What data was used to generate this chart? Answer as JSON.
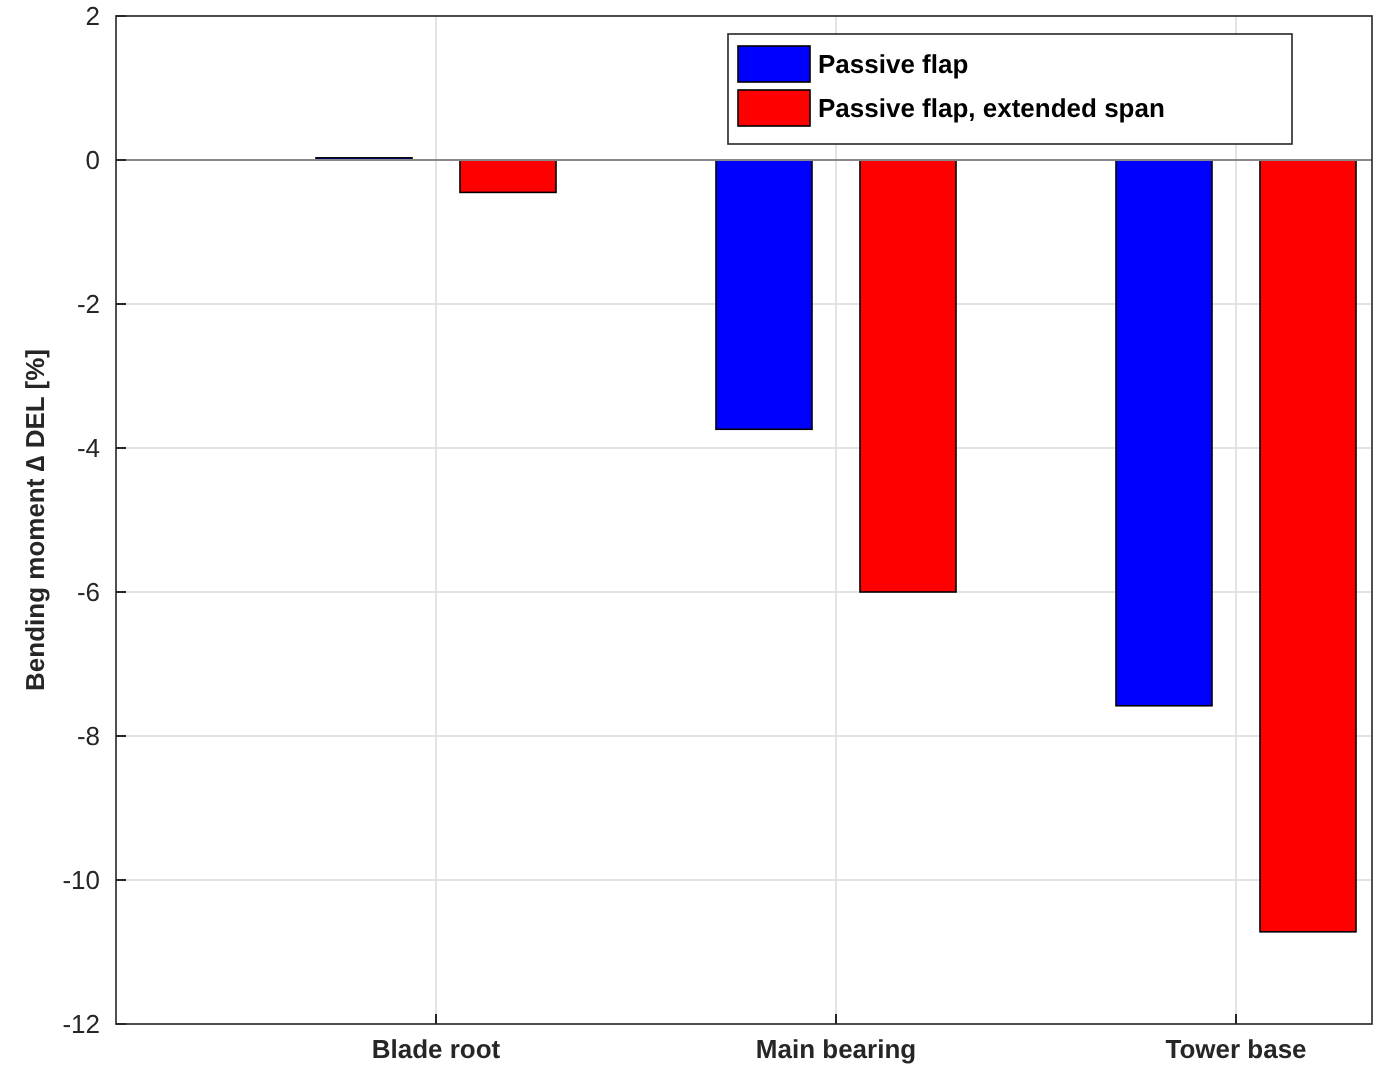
{
  "chart_data": {
    "type": "bar",
    "ylabel": "Bending moment ∆ DEL [%]",
    "categories": [
      "Blade root",
      "Main bearing",
      "Tower base"
    ],
    "series": [
      {
        "name": "Passive flap",
        "color": "#0000ff",
        "values": [
          0.03,
          -3.74,
          -7.58
        ]
      },
      {
        "name": "Passive flap, extended span",
        "color": "#ff0000",
        "values": [
          -0.45,
          -6.0,
          -10.72
        ]
      }
    ],
    "ylim": [
      -12,
      2
    ],
    "yticks": [
      -12,
      -10,
      -8,
      -6,
      -4,
      -2,
      0,
      2
    ],
    "grid": true,
    "legend": "top right"
  }
}
